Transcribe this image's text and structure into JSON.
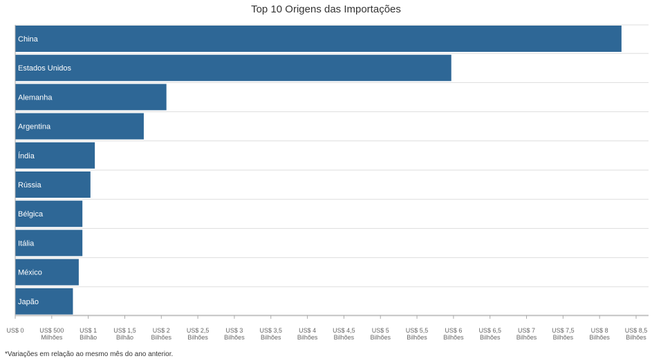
{
  "title": "Top 10 Origens das Importações",
  "footnote": "*Variações em relação ao mesmo mês do ano anterior.",
  "colors": {
    "bar": "#2e6796",
    "grid": "#dddddd",
    "axis": "#aaaaaa"
  },
  "chart_data": {
    "type": "bar",
    "orientation": "horizontal",
    "title": "Top 10 Origens das Importações",
    "categories": [
      "China",
      "Estados Unidos",
      "Alemanha",
      "Argentina",
      "Índia",
      "Rússia",
      "Bélgica",
      "Itália",
      "México",
      "Japão"
    ],
    "values": [
      8.3,
      5.97,
      2.07,
      1.76,
      1.09,
      1.03,
      0.92,
      0.92,
      0.87,
      0.79
    ],
    "unit": "US$ bilhões",
    "xlim": [
      0,
      8.5
    ],
    "grid": true,
    "x_tick_values": [
      0,
      0.5,
      1,
      1.5,
      2,
      2.5,
      3,
      3.5,
      4,
      4.5,
      5,
      5.5,
      6,
      6.5,
      7,
      7.5,
      8,
      8.5
    ],
    "x_tick_labels": [
      [
        "US$ 0"
      ],
      [
        "US$ 500",
        "Milhões"
      ],
      [
        "US$ 1",
        "Bilhão"
      ],
      [
        "US$ 1,5",
        "Bilhão"
      ],
      [
        "US$ 2",
        "Bilhões"
      ],
      [
        "US$ 2,5",
        "Bilhões"
      ],
      [
        "US$ 3",
        "Bilhões"
      ],
      [
        "US$ 3,5",
        "Bilhões"
      ],
      [
        "US$ 4",
        "Bilhões"
      ],
      [
        "US$ 4,5",
        "Bilhões"
      ],
      [
        "US$ 5",
        "Bilhões"
      ],
      [
        "US$ 5,5",
        "Bilhões"
      ],
      [
        "US$ 6",
        "Bilhões"
      ],
      [
        "US$ 6,5",
        "Bilhões"
      ],
      [
        "US$ 7",
        "Bilhões"
      ],
      [
        "US$ 7,5",
        "Bilhões"
      ],
      [
        "US$ 8",
        "Bilhões"
      ],
      [
        "US$ 8,5",
        "Bilhões"
      ]
    ]
  }
}
